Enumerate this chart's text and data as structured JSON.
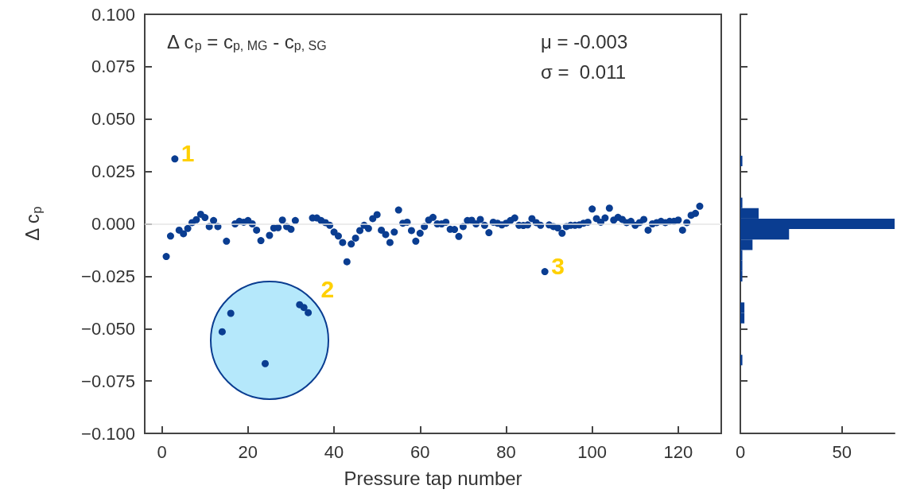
{
  "chart_data": [
    {
      "type": "scatter",
      "xlabel": "Pressure tap number",
      "ylabel": "Δ c$_{p}$",
      "color": "#0a3d91",
      "marker": "circle",
      "x": [
        1,
        2,
        3,
        4,
        5,
        6,
        7,
        8,
        9,
        10,
        11,
        12,
        13,
        14,
        15,
        16,
        17,
        18,
        19,
        20,
        21,
        22,
        23,
        24,
        25,
        26,
        27,
        28,
        29,
        30,
        31,
        32,
        33,
        34,
        35,
        36,
        37,
        38,
        39,
        40,
        41,
        42,
        43,
        44,
        45,
        46,
        47,
        48,
        49,
        50,
        51,
        52,
        53,
        54,
        55,
        56,
        57,
        58,
        59,
        60,
        61,
        62,
        63,
        64,
        65,
        66,
        67,
        68,
        69,
        70,
        71,
        72,
        73,
        74,
        75,
        76,
        77,
        78,
        79,
        80,
        81,
        82,
        83,
        84,
        85,
        86,
        87,
        88,
        89,
        90,
        91,
        92,
        93,
        94,
        95,
        96,
        97,
        98,
        99,
        100,
        101,
        102,
        103,
        104,
        105,
        106,
        107,
        108,
        109,
        110,
        111,
        112,
        113,
        114,
        115,
        116,
        117,
        118,
        119,
        120,
        121,
        122,
        123,
        124,
        125
      ],
      "values": [
        -0.0156,
        -0.0058,
        0.031,
        -0.003,
        -0.0047,
        -0.0022,
        0.0006,
        0.002,
        0.0046,
        0.003,
        -0.0013,
        0.0016,
        -0.0013,
        -0.0515,
        -0.0083,
        -0.0427,
        0,
        0.0012,
        0.0008,
        0.0016,
        0,
        -0.003,
        -0.008,
        -0.0667,
        -0.0055,
        -0.002,
        -0.0018,
        0.0018,
        -0.0013,
        -0.0026,
        0.0016,
        -0.0386,
        -0.0399,
        -0.0424,
        0.0028,
        0.0028,
        0.0016,
        0.0006,
        -0.0007,
        -0.0039,
        -0.0058,
        -0.0089,
        -0.0181,
        -0.0096,
        -0.0068,
        -0.0032,
        -0.0007,
        -0.0022,
        0.0025,
        0.0044,
        -0.003,
        -0.0051,
        -0.0089,
        -0.0039,
        0.0066,
        0.0003,
        0.0008,
        -0.0032,
        -0.0083,
        -0.0045,
        -0.0013,
        0.0018,
        0.0031,
        0,
        0,
        0.0008,
        -0.0026,
        -0.0027,
        -0.006,
        -0.0013,
        0.0016,
        0.0017,
        0,
        0.0021,
        -0.0007,
        -0.0042,
        0.0008,
        0.0003,
        -0.0005,
        0.0003,
        0.0016,
        0.0028,
        -0.0007,
        -0.0008,
        -0.0005,
        0.0025,
        0.0006,
        -0.0007,
        -0.0228,
        -0.0005,
        -0.0013,
        -0.0019,
        -0.0045,
        -0.0013,
        -0.0007,
        -0.0007,
        -0.0005,
        0.0003,
        0.0008,
        0.0071,
        0.0025,
        0.0008,
        0.0028,
        0.0075,
        0.0018,
        0.0031,
        0.0021,
        0.0006,
        0.0012,
        -0.0007,
        0.0006,
        0.0021,
        -0.003,
        0,
        0.0006,
        0.0012,
        0.0006,
        0.0012,
        0.0012,
        0.0018,
        -0.003,
        0.0006,
        0.0041,
        0.005,
        0.0084
      ],
      "xlim": [
        -4,
        130
      ],
      "xticks": [
        0,
        20,
        40,
        60,
        80,
        100,
        120
      ],
      "ylim": [
        -0.1,
        0.1
      ],
      "yticks": [
        {
          "value": -0.1,
          "label": "−0.100"
        },
        {
          "value": -0.075,
          "label": "−0.075"
        },
        {
          "value": -0.05,
          "label": "−0.050"
        },
        {
          "value": -0.025,
          "label": "−0.025"
        },
        {
          "value": 0,
          "label": "0.000"
        },
        {
          "value": 0.025,
          "label": "0.025"
        },
        {
          "value": 0.05,
          "label": "0.050"
        },
        {
          "value": 0.075,
          "label": "0.075"
        },
        {
          "value": 0.1,
          "label": "0.100"
        }
      ],
      "ref_lines": [
        {
          "axis": "y",
          "value": 0,
          "color": "#e6e6e6"
        }
      ],
      "annotations": [
        "Δ c$_{p}$ = c$_{p, MG}$ - c$_{p, SG}$",
        "μ = -0.003",
        "σ =  0.011",
        {
          "text": "1",
          "x": 3,
          "y": 0.031
        },
        "2",
        {
          "text": "3",
          "x": 89,
          "y": -0.0228
        }
      ]
    },
    {
      "type": "histogram",
      "orientation": "horizontal",
      "color": "#0a3d91",
      "tick_labels": "x",
      "bins": [
        -0.0675,
        -0.0625,
        -0.0575,
        -0.0525,
        -0.0475,
        -0.0425,
        -0.0375,
        -0.0325,
        -0.0275,
        -0.0225,
        -0.0175,
        -0.0125,
        -0.0075,
        -0.0025,
        0.0025,
        0.0075,
        0.0125,
        0.0175,
        0.0225,
        0.0275,
        0.0325
      ],
      "values": [
        1,
        0,
        0,
        0,
        2,
        2,
        0,
        0,
        1,
        1,
        1,
        6,
        24,
        76,
        9,
        1,
        0,
        0,
        0,
        1
      ],
      "xlim": [
        0,
        76
      ],
      "xticks": [
        0,
        50
      ],
      "ylim": [
        -0.1,
        0.1
      ],
      "yticks": [
        {
          "value": -0.1,
          "label": null
        },
        {
          "value": -0.075,
          "label": null
        },
        {
          "value": -0.05,
          "label": null
        },
        {
          "value": -0.025,
          "label": null
        },
        {
          "value": 0,
          "label": null
        },
        {
          "value": 0.025,
          "label": null
        },
        {
          "value": 0.05,
          "label": null
        },
        {
          "value": 0.075,
          "label": null
        },
        {
          "value": 0.1,
          "label": null
        }
      ]
    }
  ]
}
